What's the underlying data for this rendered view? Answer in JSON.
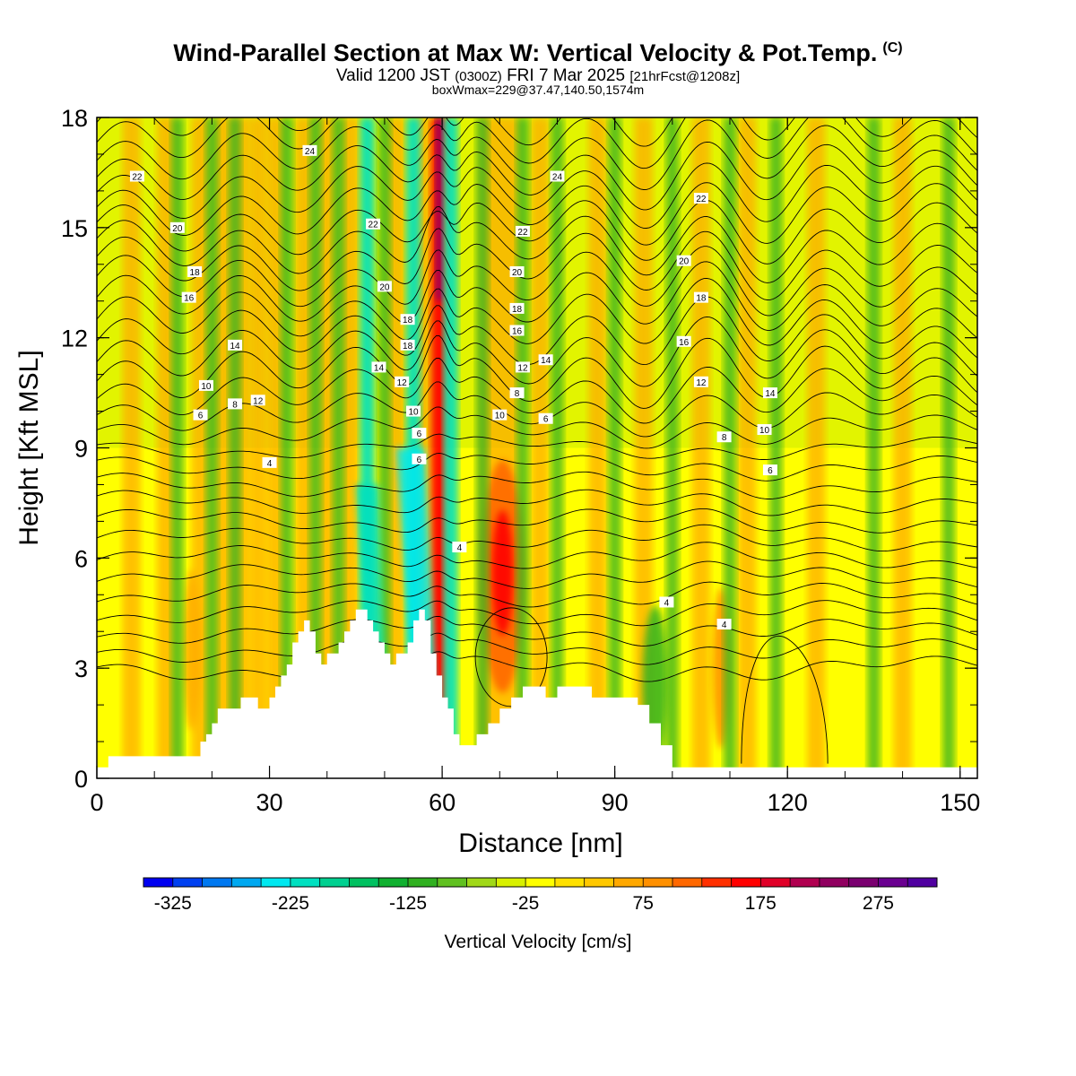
{
  "header": {
    "title": "Wind-Parallel Section at Max W: Vertical Velocity & Pot.Temp.",
    "copyright": "(C)",
    "valid_prefix": "Valid 1200 JST",
    "valid_utc": "(0300Z)",
    "valid_date": "FRI 7 Mar 2025",
    "forecast": "[21hrFcst@1208z]",
    "box_info": "boxWmax=229@37.47,140.50,1574m"
  },
  "chart_data": {
    "type": "heatmap",
    "xlabel": "Distance [nm]",
    "ylabel": "Height [Kft MSL]",
    "xlim": [
      0,
      153
    ],
    "ylim": [
      0,
      18
    ],
    "x_ticks": [
      0,
      30,
      60,
      90,
      120,
      150
    ],
    "y_ticks": [
      0,
      3,
      6,
      9,
      12,
      15,
      18
    ],
    "colorbar": {
      "label": "Vertical Velocity [cm/s]",
      "min": -350,
      "max": 325,
      "step": 25,
      "tick_labels": [
        "-325",
        "-225",
        "-125",
        "-25",
        "75",
        "175",
        "275"
      ],
      "colors": [
        "#0000f0",
        "#0040f0",
        "#0078f0",
        "#00a8f0",
        "#00e8f0",
        "#00e0c0",
        "#00d090",
        "#00c060",
        "#10b030",
        "#30b020",
        "#60c020",
        "#a0d818",
        "#d8f000",
        "#ffff00",
        "#ffe000",
        "#ffc800",
        "#ffa800",
        "#ff9000",
        "#ff6800",
        "#ff3000",
        "#ff0000",
        "#e00028",
        "#b00050",
        "#900060",
        "#7a0070",
        "#6a0090",
        "#5000a0"
      ]
    },
    "updraft_axes_nm": [
      6,
      12,
      18,
      22,
      25,
      28,
      31,
      36,
      40,
      44,
      52,
      57,
      59.5,
      70,
      77,
      87,
      95,
      105,
      113,
      125,
      140
    ],
    "downdraft_axes_nm": [
      14,
      20,
      24,
      33,
      38,
      42,
      47,
      50,
      55,
      61.5,
      67,
      74,
      80,
      90,
      100,
      110,
      118,
      135,
      148
    ],
    "terrain_kft": [
      [
        0,
        0.3
      ],
      [
        2,
        0.6
      ],
      [
        6,
        0.6
      ],
      [
        10,
        0.6
      ],
      [
        14,
        0.6
      ],
      [
        15,
        0.6
      ],
      [
        18,
        0.6
      ],
      [
        18,
        1
      ],
      [
        19,
        1.2
      ],
      [
        20,
        1.5
      ],
      [
        21,
        1.9
      ],
      [
        24,
        1.9
      ],
      [
        25,
        2.2
      ],
      [
        27,
        2.2
      ],
      [
        28,
        1.9
      ],
      [
        30,
        2.2
      ],
      [
        31,
        2.5
      ],
      [
        32,
        2.8
      ],
      [
        33,
        3.1
      ],
      [
        34,
        3.7
      ],
      [
        35,
        4.0
      ],
      [
        36,
        4.3
      ],
      [
        37,
        4.0
      ],
      [
        38,
        3.4
      ],
      [
        39,
        3.1
      ],
      [
        40,
        3.4
      ],
      [
        42,
        3.7
      ],
      [
        43,
        4.0
      ],
      [
        44,
        4.3
      ],
      [
        45,
        4.6
      ],
      [
        47,
        4.3
      ],
      [
        48,
        4.0
      ],
      [
        49,
        3.7
      ],
      [
        50,
        3.4
      ],
      [
        51,
        3.1
      ],
      [
        52,
        3.4
      ],
      [
        54,
        3.7
      ],
      [
        55,
        4.3
      ],
      [
        56,
        4.6
      ],
      [
        57,
        4.3
      ],
      [
        58,
        3.4
      ],
      [
        59,
        2.8
      ],
      [
        60,
        2.2
      ],
      [
        61,
        1.9
      ],
      [
        62,
        1.2
      ],
      [
        63,
        0.9
      ],
      [
        64,
        0.9
      ],
      [
        66,
        1.2
      ],
      [
        68,
        1.5
      ],
      [
        70,
        1.9
      ],
      [
        72,
        2.2
      ],
      [
        74,
        2.5
      ],
      [
        76,
        2.5
      ],
      [
        78,
        2.2
      ],
      [
        80,
        2.5
      ],
      [
        84,
        2.5
      ],
      [
        86,
        2.2
      ],
      [
        90,
        2.2
      ],
      [
        92,
        2.2
      ],
      [
        94,
        2.0
      ],
      [
        96,
        1.5
      ],
      [
        98,
        0.9
      ],
      [
        100,
        0.3
      ],
      [
        101,
        0.3
      ],
      [
        153,
        0.3
      ]
    ],
    "theta_contour_labels": [
      {
        "x": 7,
        "y": 16.4,
        "text": "22"
      },
      {
        "x": 14,
        "y": 15.0,
        "text": "20"
      },
      {
        "x": 17,
        "y": 13.8,
        "text": "18"
      },
      {
        "x": 16,
        "y": 13.1,
        "text": "16"
      },
      {
        "x": 24,
        "y": 11.8,
        "text": "14"
      },
      {
        "x": 19,
        "y": 10.7,
        "text": "10"
      },
      {
        "x": 24,
        "y": 10.2,
        "text": "8"
      },
      {
        "x": 28,
        "y": 10.3,
        "text": "12"
      },
      {
        "x": 18,
        "y": 9.9,
        "text": "6"
      },
      {
        "x": 30,
        "y": 8.6,
        "text": "4"
      },
      {
        "x": 37,
        "y": 17.1,
        "text": "24"
      },
      {
        "x": 48,
        "y": 15.1,
        "text": "22"
      },
      {
        "x": 50,
        "y": 13.4,
        "text": "20"
      },
      {
        "x": 54,
        "y": 12.5,
        "text": "18"
      },
      {
        "x": 54,
        "y": 11.8,
        "text": "18"
      },
      {
        "x": 49,
        "y": 11.2,
        "text": "14"
      },
      {
        "x": 53,
        "y": 10.8,
        "text": "12"
      },
      {
        "x": 55,
        "y": 10.0,
        "text": "10"
      },
      {
        "x": 56,
        "y": 9.4,
        "text": "6"
      },
      {
        "x": 56,
        "y": 8.7,
        "text": "6"
      },
      {
        "x": 63,
        "y": 6.3,
        "text": "4"
      },
      {
        "x": 80,
        "y": 16.4,
        "text": "24"
      },
      {
        "x": 74,
        "y": 14.9,
        "text": "22"
      },
      {
        "x": 73,
        "y": 13.8,
        "text": "20"
      },
      {
        "x": 73,
        "y": 12.8,
        "text": "18"
      },
      {
        "x": 73,
        "y": 12.2,
        "text": "16"
      },
      {
        "x": 74,
        "y": 11.2,
        "text": "12"
      },
      {
        "x": 78,
        "y": 11.4,
        "text": "14"
      },
      {
        "x": 73,
        "y": 10.5,
        "text": "8"
      },
      {
        "x": 70,
        "y": 9.9,
        "text": "10"
      },
      {
        "x": 78,
        "y": 9.8,
        "text": "6"
      },
      {
        "x": 105,
        "y": 15.8,
        "text": "22"
      },
      {
        "x": 102,
        "y": 14.1,
        "text": "20"
      },
      {
        "x": 105,
        "y": 13.1,
        "text": "18"
      },
      {
        "x": 102,
        "y": 11.9,
        "text": "16"
      },
      {
        "x": 105,
        "y": 10.8,
        "text": "12"
      },
      {
        "x": 117,
        "y": 10.5,
        "text": "14"
      },
      {
        "x": 116,
        "y": 9.5,
        "text": "10"
      },
      {
        "x": 109,
        "y": 9.3,
        "text": "8"
      },
      {
        "x": 117,
        "y": 8.4,
        "text": "6"
      },
      {
        "x": 99,
        "y": 4.8,
        "text": "4"
      },
      {
        "x": 109,
        "y": 4.2,
        "text": "4"
      }
    ]
  }
}
